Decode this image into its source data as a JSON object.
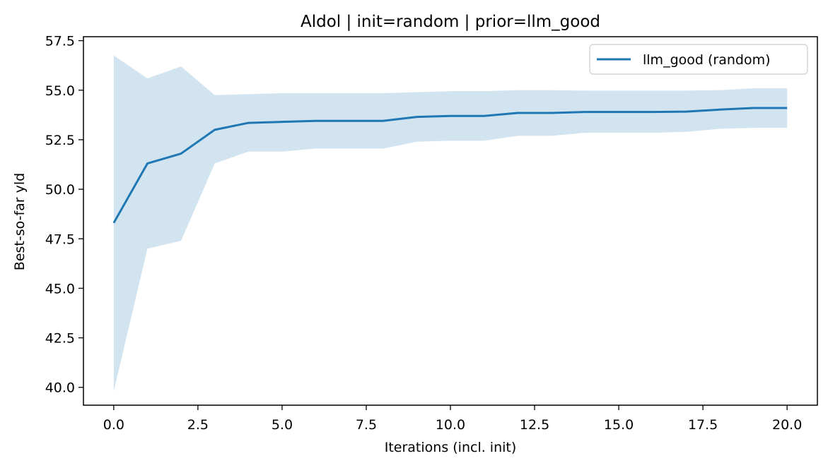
{
  "chart_data": {
    "type": "line",
    "title": "Aldol | init=random | prior=llm_good",
    "xlabel": "Iterations (incl. init)",
    "ylabel": "Best-so-far yld",
    "xlim": [
      -0.9,
      20.9
    ],
    "ylim": [
      39.1,
      57.7
    ],
    "xticks": [
      0,
      2.5,
      5,
      7.5,
      10,
      12.5,
      15,
      17.5,
      20
    ],
    "xtick_labels": [
      "0.0",
      "2.5",
      "5.0",
      "7.5",
      "10.0",
      "12.5",
      "15.0",
      "17.5",
      "20.0"
    ],
    "yticks": [
      40,
      42.5,
      45,
      47.5,
      50,
      52.5,
      55,
      57.5
    ],
    "ytick_labels": [
      "40.0",
      "42.5",
      "45.0",
      "47.5",
      "50.0",
      "52.5",
      "55.0",
      "57.5"
    ],
    "grid": false,
    "legend_position": "upper right",
    "x": [
      0,
      1,
      2,
      3,
      4,
      5,
      6,
      7,
      8,
      9,
      10,
      11,
      12,
      13,
      14,
      15,
      16,
      17,
      18,
      19,
      20
    ],
    "series": [
      {
        "name": "llm_good (random)",
        "color": "#1f77b4",
        "band_color": "#1f77b4",
        "values": [
          48.3,
          51.3,
          51.8,
          53.0,
          53.35,
          53.4,
          53.45,
          53.45,
          53.45,
          53.65,
          53.7,
          53.7,
          53.85,
          53.85,
          53.9,
          53.9,
          53.9,
          53.92,
          54.02,
          54.1,
          54.1
        ],
        "lower": [
          39.8,
          47.0,
          47.4,
          51.3,
          51.9,
          51.9,
          52.05,
          52.05,
          52.05,
          52.4,
          52.45,
          52.45,
          52.7,
          52.7,
          52.85,
          52.85,
          52.85,
          52.9,
          53.05,
          53.1,
          53.1
        ],
        "upper": [
          56.75,
          55.6,
          56.2,
          54.75,
          54.8,
          54.85,
          54.85,
          54.85,
          54.85,
          54.9,
          54.95,
          54.95,
          55.0,
          55.0,
          54.98,
          54.98,
          54.98,
          54.98,
          55.0,
          55.1,
          55.1
        ]
      }
    ]
  }
}
